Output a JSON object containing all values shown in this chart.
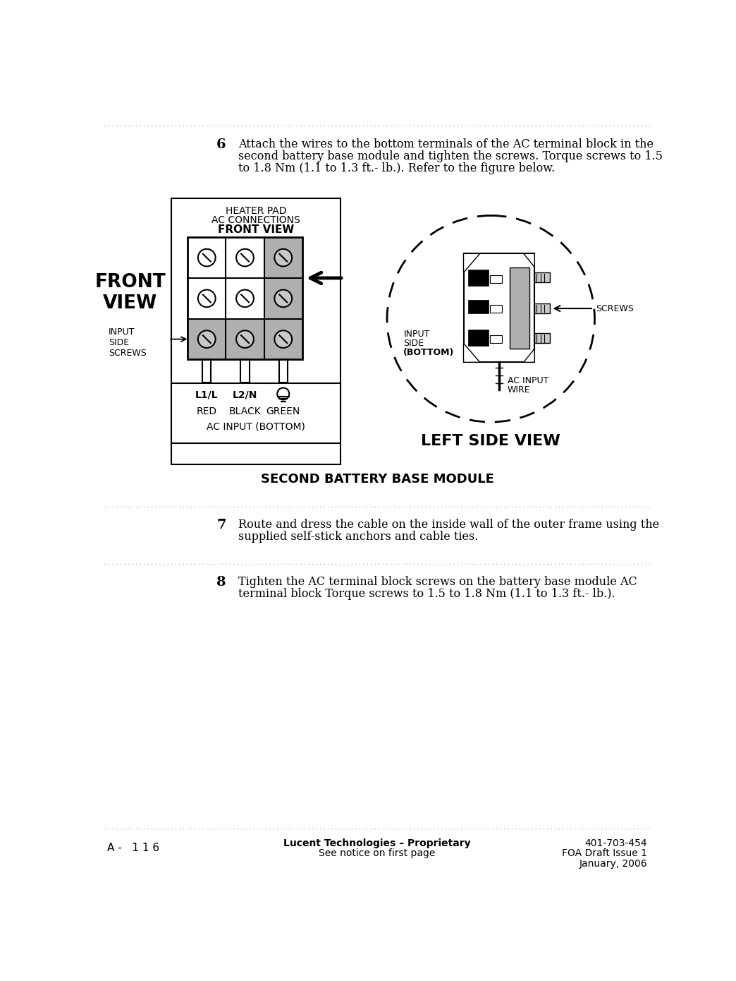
{
  "bg_color": "#ffffff",
  "step6_number": "6",
  "step6_text_line1": "Attach the wires to the bottom terminals of the AC terminal block in the",
  "step6_text_line2": "second battery base module and tighten the screws. Torque screws to 1.5",
  "step6_text_line3": "to 1.8 Nm (1.1 to 1.3 ft.- lb.). Refer to the figure below.",
  "step7_number": "7",
  "step7_text_line1": "Route and dress the cable on the inside wall of the outer frame using the",
  "step7_text_line2": "supplied self-stick anchors and cable ties.",
  "step8_number": "8",
  "step8_text_line1": "Tighten the AC terminal block screws on the battery base module AC",
  "step8_text_line2": "terminal block Torque screws to 1.5 to 1.8 Nm (1.1 to 1.3 ft.- lb.).",
  "footer_left": "A -   1 1 6",
  "footer_center_line1": "Lucent Technologies – Proprietary",
  "footer_center_line2": "See notice on first page",
  "footer_right_line1": "401-703-454",
  "footer_right_line2": "FOA Draft Issue 1",
  "footer_right_line3": "January, 2006",
  "second_battery_label": "SECOND BATTERY BASE MODULE",
  "front_view_big_label": "FRONT\nVIEW",
  "left_side_view_label": "LEFT SIDE VIEW",
  "heater_pad_label_line1": "HEATER PAD",
  "heater_pad_label_line2": "AC CONNECTIONS",
  "heater_pad_label_line3": "FRONT VIEW",
  "input_side_screws_label": "INPUT\nSIDE\nSCREWS",
  "l1l_label": "L1/L",
  "l2n_label": "L2/N",
  "green_label": "GREEN",
  "red_label": "RED",
  "black_label": "BLACK",
  "ac_input_bottom_label": "AC INPUT (BOTTOM)",
  "input_side_label_line1": "INPUT",
  "input_side_label_line2": "SIDE",
  "input_side_label_line3": "(BOTTOM)",
  "ac_input_wire_line1": "AC INPUT",
  "ac_input_wire_line2": "WIRE",
  "screws_label": "SCREWS",
  "gray_color": "#b0b0b0",
  "light_gray": "#c8c8c8"
}
